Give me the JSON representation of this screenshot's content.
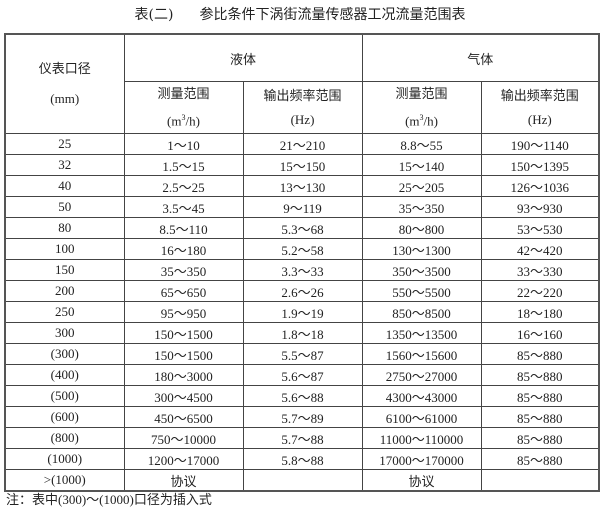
{
  "title": {
    "label": "表(二)",
    "text": "参比条件下涡街流量传感器工况流量范围表"
  },
  "header": {
    "diameter": "仪表口径",
    "diameter_unit": "(mm)",
    "liquid": "液体",
    "gas": "气体",
    "range": "测量范围",
    "range_unit_pre": "(m",
    "range_unit_sup": "3",
    "range_unit_post": "/h)",
    "freq": "输出频率范围",
    "freq_unit": "(Hz)"
  },
  "rows": [
    [
      "25",
      "1～10",
      "21～210",
      "8.8～55",
      "190～1140"
    ],
    [
      "32",
      "1.5～15",
      "15～150",
      "15～140",
      "150～1395"
    ],
    [
      "40",
      "2.5～25",
      "13～130",
      "25～205",
      "126～1036"
    ],
    [
      "50",
      "3.5～45",
      "9～119",
      "35～350",
      "93～930"
    ],
    [
      "80",
      "8.5～110",
      "5.3～68",
      "80～800",
      "53～530"
    ],
    [
      "100",
      "16～180",
      "5.2～58",
      "130～1300",
      "42～420"
    ],
    [
      "150",
      "35～350",
      "3.3～33",
      "350～3500",
      "33～330"
    ],
    [
      "200",
      "65～650",
      "2.6～26",
      "550～5500",
      "22～220"
    ],
    [
      "250",
      "95～950",
      "1.9～19",
      "850～8500",
      "18～180"
    ],
    [
      "300",
      "150～1500",
      "1.8～18",
      "1350～13500",
      "16～160"
    ],
    [
      "(300)",
      "150～1500",
      "5.5～87",
      "1560～15600",
      "85～880"
    ],
    [
      "(400)",
      "180～3000",
      "5.6～87",
      "2750～27000",
      "85～880"
    ],
    [
      "(500)",
      "300～4500",
      "5.6～88",
      "4300～43000",
      "85～880"
    ],
    [
      "(600)",
      "450～6500",
      "5.7～89",
      "6100～61000",
      "85～880"
    ],
    [
      "(800)",
      "750～10000",
      "5.7～88",
      "11000～110000",
      "85～880"
    ],
    [
      "(1000)",
      "1200～17000",
      "5.8～88",
      "17000～170000",
      "85～880"
    ],
    [
      ">(1000)",
      "协议",
      "",
      "协议",
      ""
    ]
  ],
  "note": "注：表中(300)～(1000)口径为插入式"
}
